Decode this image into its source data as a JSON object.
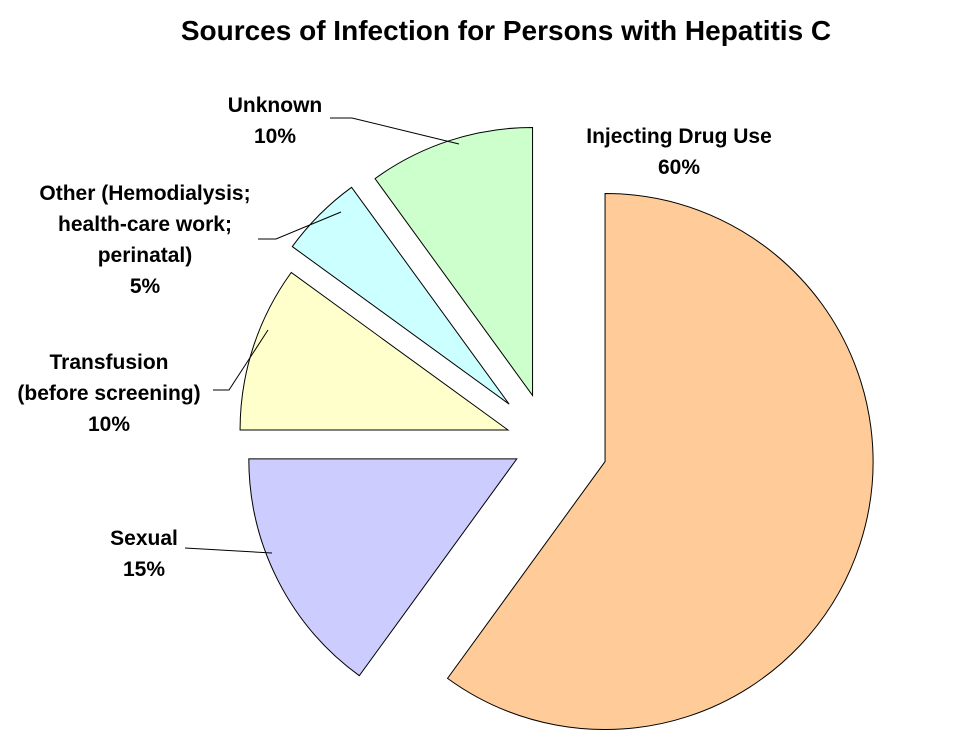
{
  "chart_data": {
    "type": "pie",
    "title": "Sources of Infection for Persons with Hepatitis C",
    "slices": [
      {
        "label_lines": [
          "Injecting Drug Use"
        ],
        "percent_label": "60%",
        "value": 60,
        "color": "#FFCC99"
      },
      {
        "label_lines": [
          "Sexual"
        ],
        "percent_label": "15%",
        "value": 15,
        "color": "#CCCCFF"
      },
      {
        "label_lines": [
          "Transfusion",
          "(before screening)"
        ],
        "percent_label": "10%",
        "value": 10,
        "color": "#FFFFCC"
      },
      {
        "label_lines": [
          "Other (Hemodialysis;",
          "health-care work;",
          "perinatal)"
        ],
        "percent_label": "5%",
        "value": 5,
        "color": "#CCFFFF"
      },
      {
        "label_lines": [
          "Unknown"
        ],
        "percent_label": "10%",
        "value": 10,
        "color": "#CCFFCC"
      }
    ],
    "start_angle": "top",
    "direction": "clockwise",
    "exploded": true
  }
}
